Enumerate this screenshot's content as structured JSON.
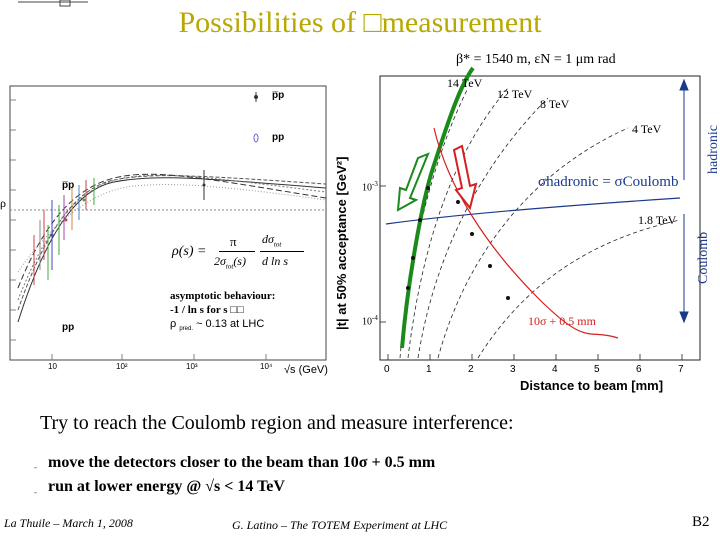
{
  "slide": {
    "title": "Possibilities of □measurement",
    "main_text": "Try to reach the Coulomb region and measure interference:",
    "bullets": [
      "move the detectors closer to the beam than 10σ + 0.5 mm",
      "run at lower energy  @ √s < 14 TeV"
    ],
    "bullet_marker": "-",
    "footer_left": "La Thuile – March 1, 2008",
    "footer_center": "G. Latino – The TOTEM Experiment at LHC",
    "footer_right": "B2"
  },
  "left_figure": {
    "legend_pbar": "p̅p",
    "legend_pp": "pp",
    "left_label_pbar": "p̅p",
    "bottom_label_pp": "pp",
    "y_label": "ρ",
    "x_label": "√s (GeV)",
    "x_ticks": [
      "10",
      "10²",
      "10³",
      "10⁴"
    ],
    "formula_lhs": "ρ(s) =",
    "formula_pi": "π",
    "formula_den_left": "2σ",
    "formula_den_sub": "tot",
    "formula_den_right": "(s)",
    "formula_dsigma": "dσ",
    "formula_dsigma_sub": "tot",
    "formula_dlns": "d ln s",
    "asym_line1": "asymptotic behaviour:",
    "asym_line2": "-1 / ln s  for  s □□",
    "asym_line3_rho": "ρ",
    "asym_line3_sub": "pred.",
    "asym_line3_rest": "~ 0.13 at LHC"
  },
  "right_figure": {
    "header": "β* = 1540 m, εN = 1 μm rad",
    "y_label": "|t| at 50% acceptance [GeV²]",
    "x_label": "Distance to beam [mm]",
    "x_ticks": [
      "0",
      "1",
      "2",
      "3",
      "4",
      "5",
      "6",
      "7"
    ],
    "y_tick_1": "10",
    "y_tick_1_exp": "-3",
    "y_tick_2": "10",
    "y_tick_2_exp": "-4",
    "energy_labels": [
      "14 TeV",
      "12 TeV",
      "8 TeV",
      "4 TeV",
      "1.8 TeV"
    ],
    "sigma_eq": "σhadronic = σCoulomb",
    "hadronic": "hadronic",
    "coulomb": "Coulomb",
    "red_curve_label": "10σ + 0.5 mm"
  },
  "colors": {
    "title": "#b8a800",
    "green": "#1a8a1a",
    "red": "#d42020",
    "blue": "#1a3a8a"
  }
}
